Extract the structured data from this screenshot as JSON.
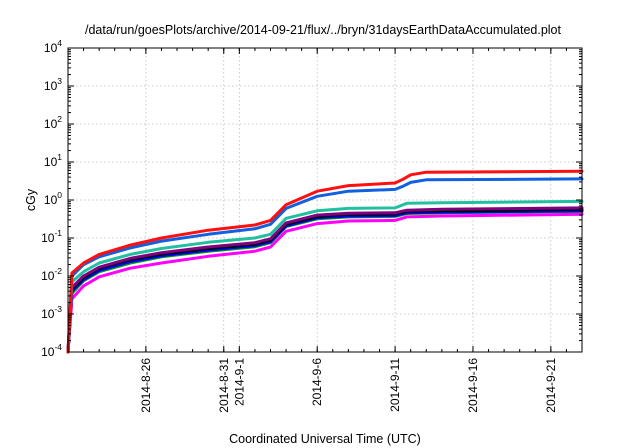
{
  "chart_data": {
    "type": "line",
    "title": "/data/run/goesPlots/archive/2014-09-21/flux/../bryn/31daysEarthDataAccumulated.plot",
    "xlabel": "Coordinated Universal Time (UTC)",
    "ylabel": "cGy",
    "yscale": "log",
    "ylim": [
      0.0001,
      10000
    ],
    "xlim": [
      "2014-08-21",
      "2014-09-23"
    ],
    "grid": true,
    "legend": "none",
    "x_ticks": [
      "2014-8-26",
      "2014-8-31",
      "2014-9-1",
      "2014-9-6",
      "2014-9-11",
      "2014-9-16",
      "2014-9-21"
    ],
    "y_ticks": [
      {
        "base": "10",
        "exp": "-4",
        "value": 0.0001
      },
      {
        "base": "10",
        "exp": "-3",
        "value": 0.001
      },
      {
        "base": "10",
        "exp": "-2",
        "value": 0.01
      },
      {
        "base": "10",
        "exp": "-1",
        "value": 0.1
      },
      {
        "base": "10",
        "exp": "0",
        "value": 1
      },
      {
        "base": "10",
        "exp": "1",
        "value": 10
      },
      {
        "base": "10",
        "exp": "2",
        "value": 100
      },
      {
        "base": "10",
        "exp": "3",
        "value": 1000
      },
      {
        "base": "10",
        "exp": "4",
        "value": 10000
      }
    ],
    "series": [
      {
        "color": "#00a000",
        "x": [
          "2014-08-21",
          "2014-08-21T06",
          "2014-08-22",
          "2014-08-23",
          "2014-08-25",
          "2014-08-27",
          "2014-08-30",
          "2014-09-02",
          "2014-09-03",
          "2014-09-04",
          "2014-09-06",
          "2014-09-08",
          "2014-09-11",
          "2014-09-11T18",
          "2014-09-14",
          "2014-09-23"
        ],
        "values": [
          0.0001,
          0.0035,
          0.0075,
          0.013,
          0.022,
          0.032,
          0.045,
          0.059,
          0.075,
          0.2,
          0.32,
          0.36,
          0.37,
          0.44,
          0.46,
          0.5
        ]
      },
      {
        "color": "#0000ff",
        "x": [
          "2014-08-21",
          "2014-08-21T06",
          "2014-08-22",
          "2014-08-23",
          "2014-08-25",
          "2014-08-27",
          "2014-08-30",
          "2014-09-02",
          "2014-09-03",
          "2014-09-04",
          "2014-09-06",
          "2014-09-08",
          "2014-09-11",
          "2014-09-11T18",
          "2014-09-14",
          "2014-09-23"
        ],
        "values": [
          0.0001,
          0.004,
          0.008,
          0.014,
          0.024,
          0.034,
          0.048,
          0.063,
          0.08,
          0.21,
          0.34,
          0.38,
          0.39,
          0.46,
          0.48,
          0.52
        ]
      },
      {
        "color": "#ff00ff",
        "x": [
          "2014-08-21",
          "2014-08-21T06",
          "2014-08-22",
          "2014-08-23",
          "2014-08-25",
          "2014-08-27",
          "2014-08-30",
          "2014-09-02",
          "2014-09-03",
          "2014-09-04",
          "2014-09-06",
          "2014-09-08",
          "2014-09-11",
          "2014-09-11T18",
          "2014-09-14",
          "2014-09-23"
        ],
        "values": [
          0.0001,
          0.0025,
          0.0055,
          0.0095,
          0.016,
          0.022,
          0.033,
          0.045,
          0.058,
          0.15,
          0.24,
          0.28,
          0.29,
          0.36,
          0.38,
          0.42
        ]
      },
      {
        "color": "#000000",
        "x": [
          "2014-08-21",
          "2014-08-21T06",
          "2014-08-22",
          "2014-08-23",
          "2014-08-25",
          "2014-08-27",
          "2014-08-30",
          "2014-09-02",
          "2014-09-03",
          "2014-09-04",
          "2014-09-06",
          "2014-09-08",
          "2014-09-11",
          "2014-09-11T18",
          "2014-09-14",
          "2014-09-23"
        ],
        "values": [
          0.0001,
          0.0045,
          0.009,
          0.016,
          0.027,
          0.038,
          0.053,
          0.069,
          0.088,
          0.23,
          0.37,
          0.42,
          0.43,
          0.5,
          0.52,
          0.57
        ]
      },
      {
        "color": "#800080",
        "x": [
          "2014-08-21",
          "2014-08-21T06",
          "2014-08-22",
          "2014-08-23",
          "2014-08-25",
          "2014-08-27",
          "2014-08-30",
          "2014-09-02",
          "2014-09-03",
          "2014-09-04",
          "2014-09-06",
          "2014-09-08",
          "2014-09-11",
          "2014-09-11T18",
          "2014-09-14",
          "2014-09-23"
        ],
        "values": [
          0.0001,
          0.005,
          0.01,
          0.017,
          0.029,
          0.041,
          0.058,
          0.075,
          0.095,
          0.25,
          0.4,
          0.45,
          0.46,
          0.54,
          0.57,
          0.62
        ]
      },
      {
        "color": "#20c0a0",
        "x": [
          "2014-08-21",
          "2014-08-21T06",
          "2014-08-22",
          "2014-08-23",
          "2014-08-25",
          "2014-08-27",
          "2014-08-30",
          "2014-09-02",
          "2014-09-03",
          "2014-09-04",
          "2014-09-06",
          "2014-09-08",
          "2014-09-11",
          "2014-09-11T18",
          "2014-09-14",
          "2014-09-23"
        ],
        "values": [
          0.0001,
          0.007,
          0.013,
          0.022,
          0.037,
          0.053,
          0.077,
          0.1,
          0.125,
          0.33,
          0.52,
          0.6,
          0.62,
          0.82,
          0.85,
          0.92
        ]
      },
      {
        "color": "#1060e0",
        "x": [
          "2014-08-21",
          "2014-08-21T06",
          "2014-08-22",
          "2014-08-23",
          "2014-08-25",
          "2014-08-27",
          "2014-08-30",
          "2014-09-02",
          "2014-09-03",
          "2014-09-04",
          "2014-09-06",
          "2014-09-08",
          "2014-09-11",
          "2014-09-11T12",
          "2014-09-12",
          "2014-09-13",
          "2014-09-23"
        ],
        "values": [
          0.0001,
          0.01,
          0.02,
          0.032,
          0.055,
          0.083,
          0.125,
          0.175,
          0.23,
          0.6,
          1.25,
          1.7,
          1.9,
          2.3,
          2.9,
          3.4,
          3.6
        ]
      },
      {
        "color": "#ff1010",
        "x": [
          "2014-08-21",
          "2014-08-21T06",
          "2014-08-22",
          "2014-08-23",
          "2014-08-25",
          "2014-08-27",
          "2014-08-30",
          "2014-09-02",
          "2014-09-03",
          "2014-09-04",
          "2014-09-06",
          "2014-09-08",
          "2014-09-11",
          "2014-09-11T12",
          "2014-09-12",
          "2014-09-13",
          "2014-09-23"
        ],
        "values": [
          0.0001,
          0.012,
          0.022,
          0.037,
          0.065,
          0.1,
          0.16,
          0.22,
          0.29,
          0.75,
          1.7,
          2.4,
          2.8,
          3.5,
          4.6,
          5.4,
          5.7
        ]
      }
    ]
  }
}
